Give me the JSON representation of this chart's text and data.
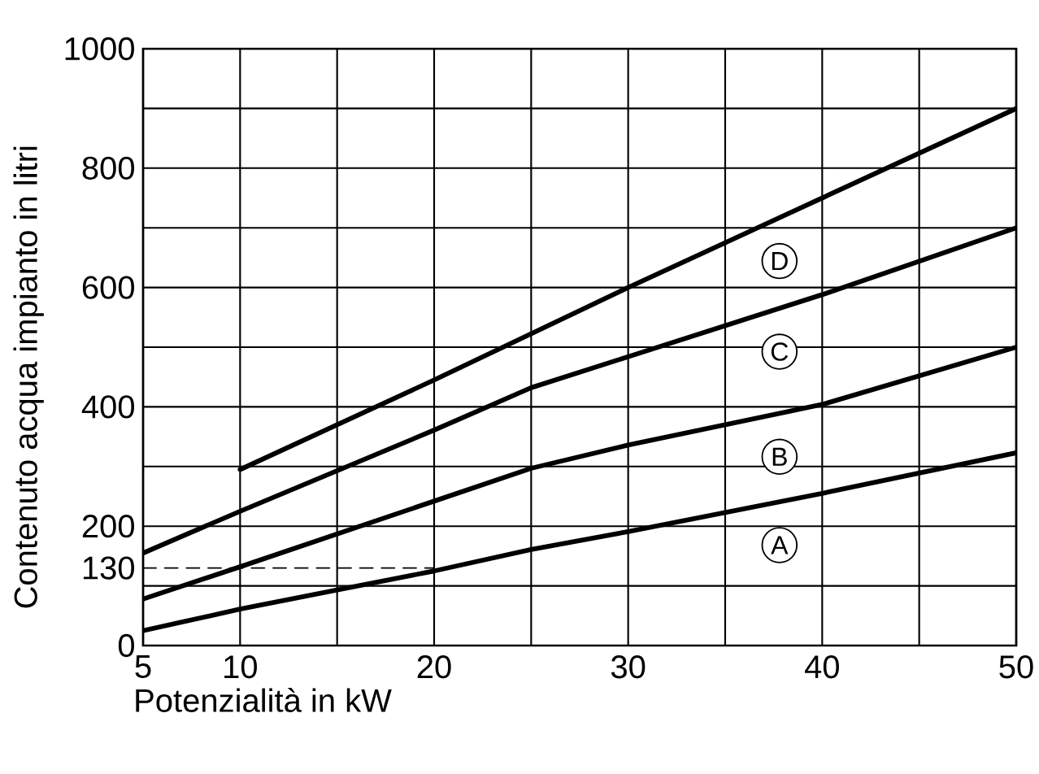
{
  "chart_data": {
    "type": "line",
    "xlabel": "Potenzialità in kW",
    "ylabel": "Contenuto acqua impianto in litri",
    "xlim": [
      5,
      50
    ],
    "ylim": [
      0,
      1000
    ],
    "xticks": [
      5,
      10,
      {
        "value": 15,
        "label": null
      },
      20,
      {
        "value": 25,
        "label": null
      },
      30,
      {
        "value": 35,
        "label": null
      },
      40,
      {
        "value": 45,
        "label": null
      },
      50
    ],
    "yticks": [
      0,
      {
        "value": 100,
        "label": null
      },
      130,
      200,
      {
        "value": 300,
        "label": null
      },
      400,
      {
        "value": 500,
        "label": null
      },
      600,
      {
        "value": 700,
        "label": null
      },
      800,
      {
        "value": 900,
        "label": null
      },
      1000
    ],
    "grid": true,
    "legend": "right",
    "series": [
      {
        "name": "A",
        "color": "#000000",
        "x": [
          5,
          10,
          15,
          20,
          25,
          30,
          40,
          50
        ],
        "values": [
          25,
          61,
          93,
          125,
          161,
          191,
          255,
          323
        ]
      },
      {
        "name": "B",
        "color": "#000000",
        "x": [
          5,
          10,
          20,
          25,
          30,
          40,
          50
        ],
        "values": [
          78,
          132,
          242,
          297,
          336,
          404,
          500
        ]
      },
      {
        "name": "C",
        "color": "#000000",
        "x": [
          5,
          10,
          20,
          25,
          30,
          40,
          50
        ],
        "values": [
          155,
          225,
          361,
          432,
          484,
          588,
          700
        ]
      },
      {
        "name": "D",
        "color": "#000000",
        "x": [
          10,
          20,
          30,
          40,
          50
        ],
        "values": [
          295,
          445,
          600,
          750,
          900
        ]
      },
      {
        "color": "#000000",
        "line_style": "dashed",
        "x": [
          5,
          20,
          20
        ],
        "values": [
          130,
          130,
          0
        ]
      }
    ]
  }
}
